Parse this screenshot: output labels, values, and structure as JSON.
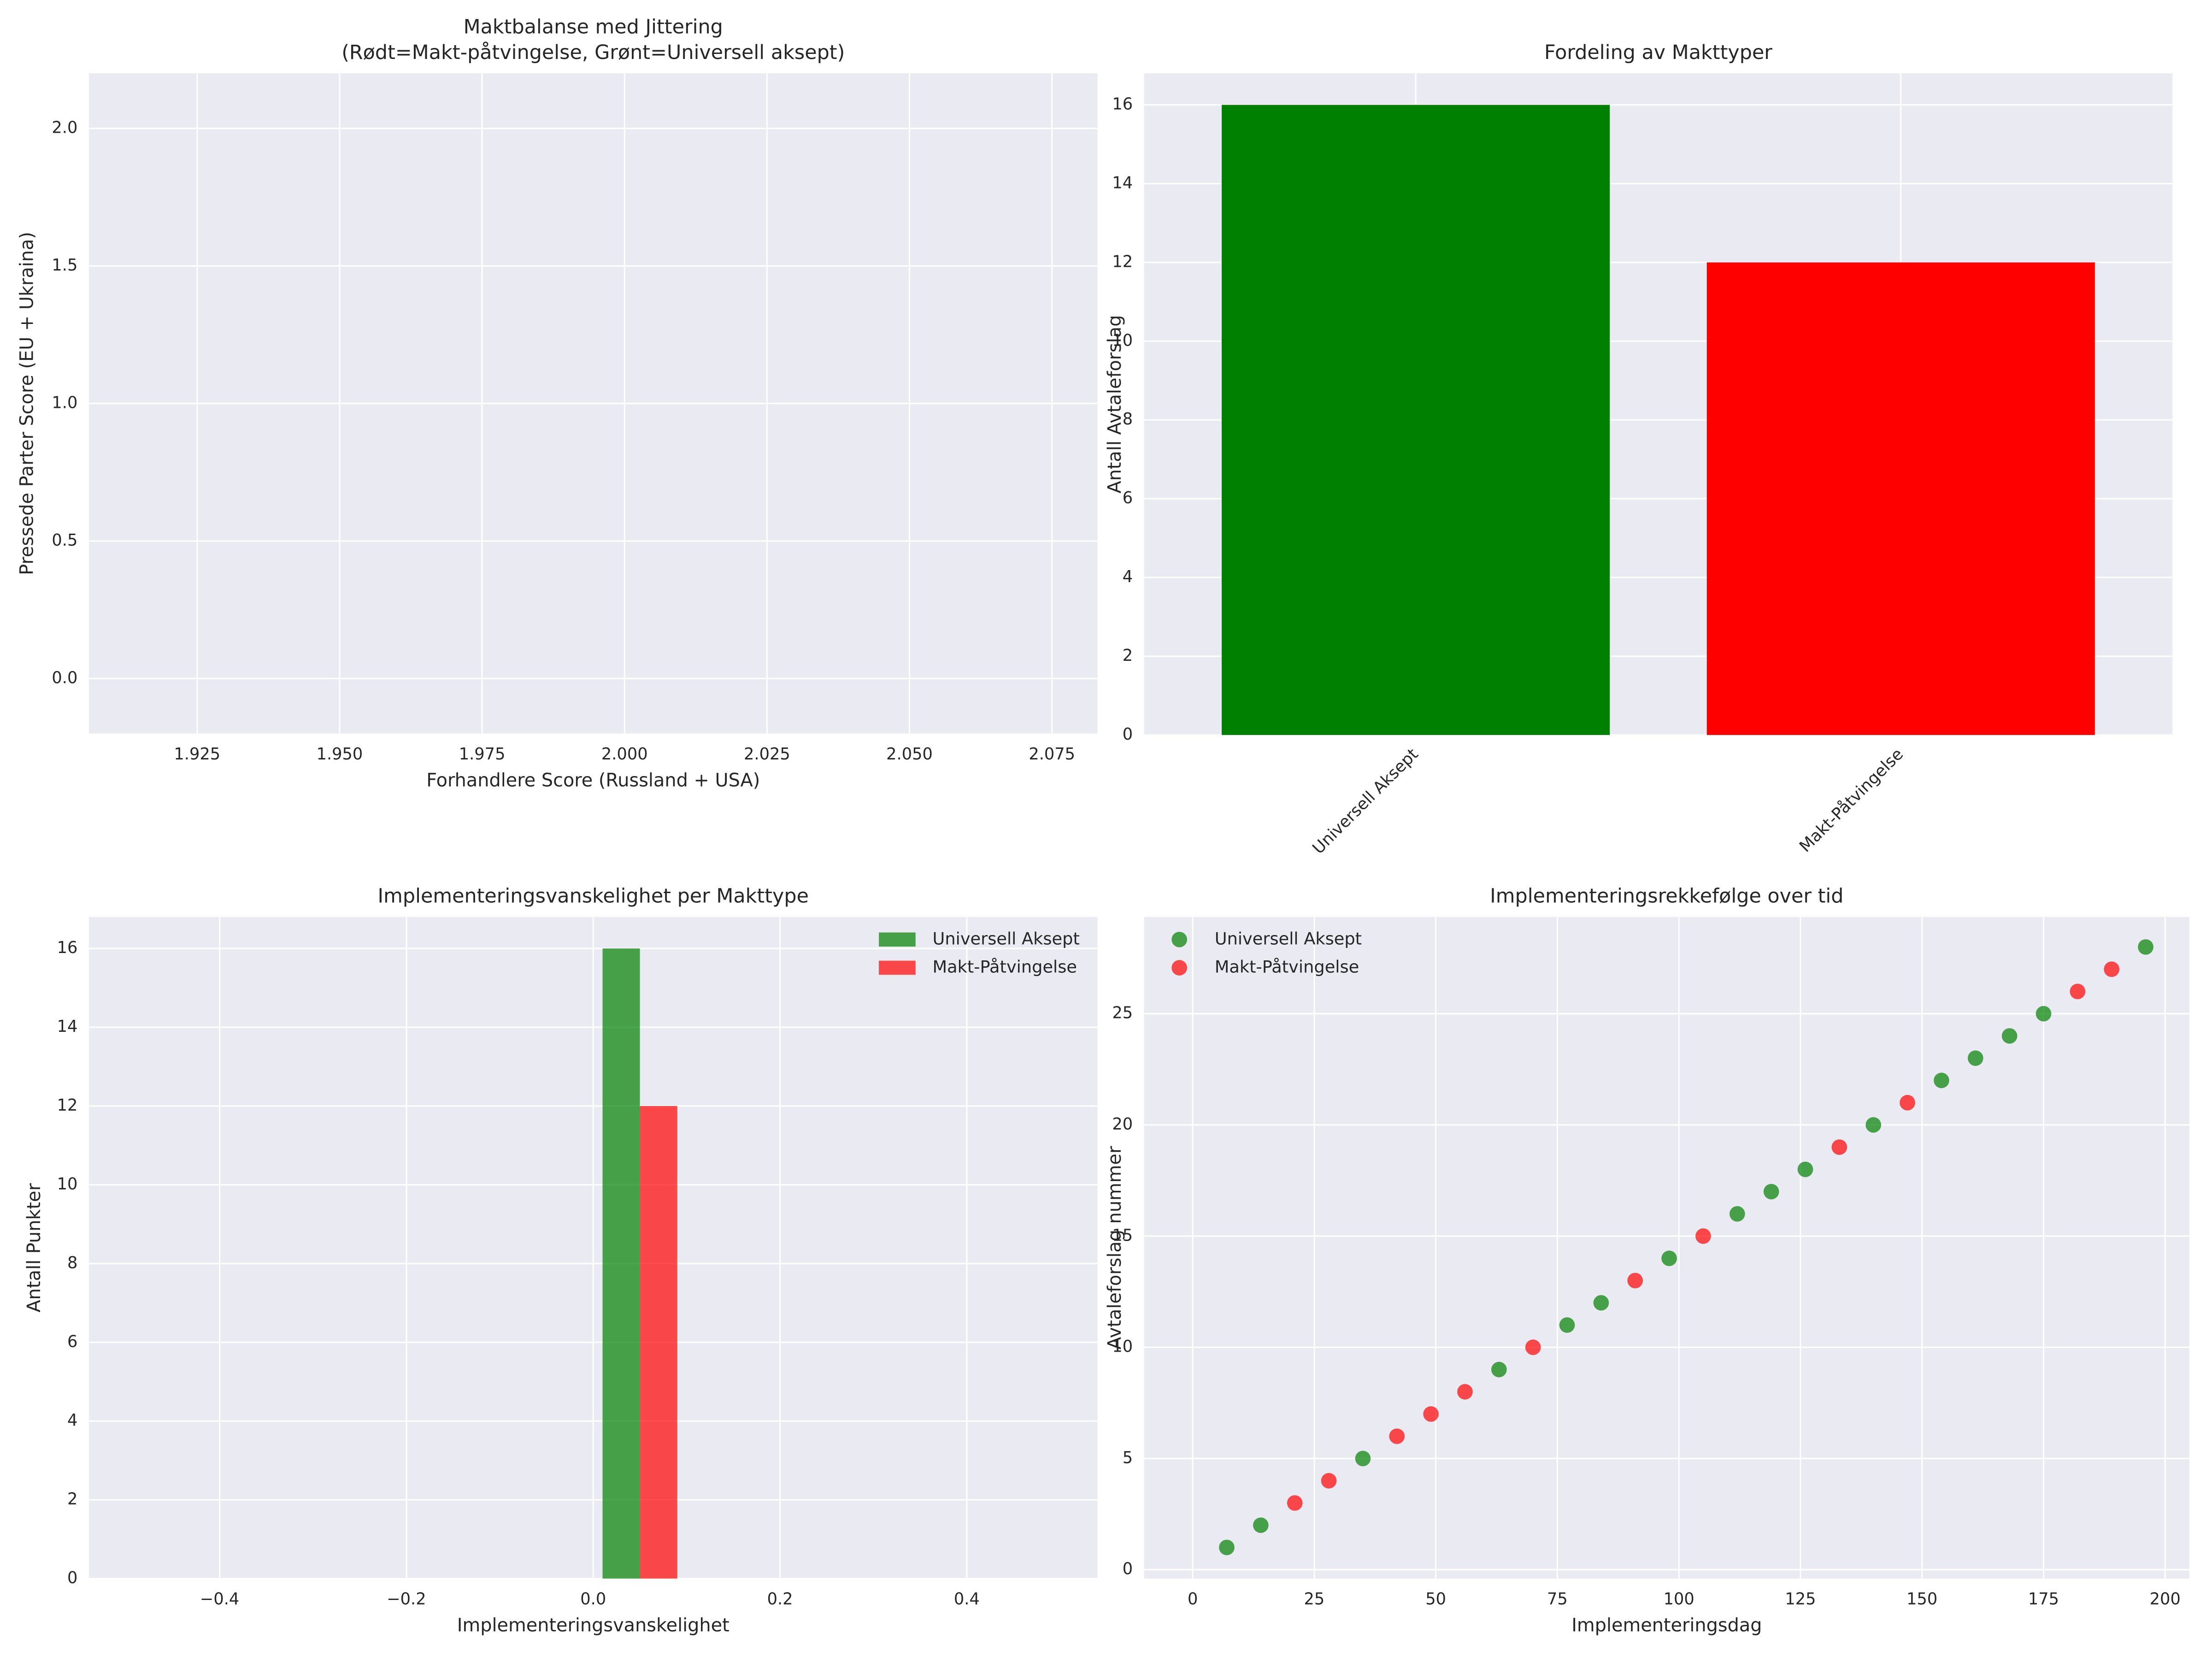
{
  "chart_data": [
    {
      "type": "scatter",
      "title": "Maktbalanse med Jittering",
      "subtitle": "(Rødt=Makt-påtvingelse, Grønt=Universell aksept)",
      "xlabel": "Forhandlere Score (Russland + USA)",
      "ylabel": "Pressede Parter Score (EU + Ukraina)",
      "xlim": [
        1.906,
        2.083
      ],
      "xticks": [
        1.925,
        {
          "value": 1.95,
          "label": "1.950"
        },
        1.975,
        {
          "value": 2,
          "label": "2.000"
        },
        2.025,
        {
          "value": 2.05,
          "label": "2.050"
        },
        2.075
      ],
      "ylim": [
        -0.2,
        2.2
      ],
      "yticks": [
        {
          "value": 0,
          "label": "0.0"
        },
        0.5,
        {
          "value": 1,
          "label": "1.0"
        },
        1.5,
        {
          "value": 2,
          "label": "2.0"
        }
      ],
      "grid": true
    },
    {
      "type": "bar",
      "title": "Fordeling av Makttyper",
      "ylabel": "Antall Avtaleforslag",
      "categories": [
        "Universell Aksept",
        "Makt-Påtvingelse"
      ],
      "values": [
        16,
        12
      ],
      "colors": [
        "#008000",
        "#ff0000"
      ],
      "ylim": [
        0,
        16.8
      ],
      "yticks": [
        0,
        2,
        4,
        6,
        8,
        10,
        12,
        14,
        16
      ],
      "grid": true
    },
    {
      "type": "histogram",
      "title": "Implementeringsvanskelighet per Makttype",
      "xlabel": "Implementeringsvanskelighet",
      "ylabel": "Antall Punkter",
      "bins": [
        0,
        0.1
      ],
      "series": [
        {
          "name": "Universell Aksept",
          "color": "#008000",
          "values": [
            16
          ]
        },
        {
          "name": "Makt-Påtvingelse",
          "color": "#ff0000",
          "values": [
            12
          ]
        }
      ],
      "alpha": 0.7,
      "xlim": [
        -0.54,
        0.54
      ],
      "xticks": [
        {
          "value": -0.4,
          "label": "−0.4"
        },
        {
          "value": -0.2,
          "label": "−0.2"
        },
        {
          "value": 0,
          "label": "0.0"
        },
        0.2,
        0.4
      ],
      "ylim": [
        0,
        16.8
      ],
      "yticks": [
        0,
        2,
        4,
        6,
        8,
        10,
        12,
        14,
        16
      ],
      "grid": true,
      "legend": "upper right"
    },
    {
      "type": "scatter",
      "title": "Implementeringsrekkefølge over tid",
      "xlabel": "Implementeringsdag",
      "ylabel": "Avtaleforslag nummer",
      "series": [
        {
          "name": "Universell Aksept",
          "color": "#008000",
          "x": [
            7,
            14,
            35,
            63,
            77,
            84,
            98,
            112,
            119,
            126,
            140,
            154,
            161,
            168,
            175,
            196
          ],
          "values": [
            1,
            2,
            5,
            9,
            11,
            12,
            14,
            16,
            17,
            18,
            20,
            22,
            23,
            24,
            25,
            28
          ]
        },
        {
          "name": "Makt-Påtvingelse",
          "color": "#ff0000",
          "x": [
            21,
            28,
            42,
            49,
            56,
            70,
            91,
            105,
            133,
            147,
            182,
            189
          ],
          "values": [
            3,
            4,
            6,
            7,
            8,
            10,
            13,
            15,
            19,
            21,
            26,
            27
          ]
        }
      ],
      "alpha": 0.7,
      "xlim": [
        -10,
        205
      ],
      "xticks": [
        0,
        25,
        50,
        75,
        100,
        125,
        150,
        175,
        200
      ],
      "ylim": [
        -0.4,
        29.35
      ],
      "yticks": [
        0,
        5,
        10,
        15,
        20,
        25
      ],
      "grid": true,
      "legend": "upper left"
    }
  ]
}
